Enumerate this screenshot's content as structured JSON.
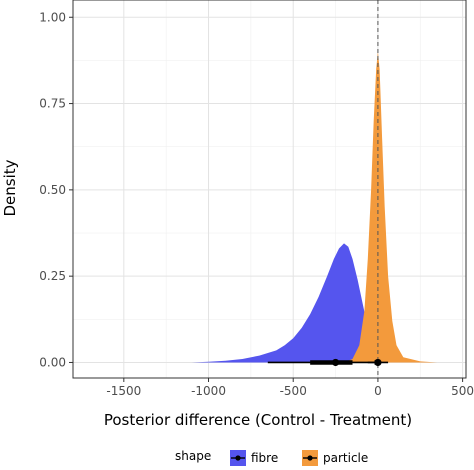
{
  "chart_data": {
    "type": "area",
    "xlabel": "Posterior difference (Control - Treatment)",
    "ylabel": "Density",
    "xlim": [
      -1800,
      520
    ],
    "ylim": [
      -0.045,
      1.05
    ],
    "x_ticks": [
      -1500,
      -1000,
      -500,
      0,
      500
    ],
    "x_tick_labels": [
      "-1500",
      "-1000",
      "-500",
      "0",
      "500"
    ],
    "y_ticks": [
      0,
      0.25,
      0.5,
      0.75,
      1.0
    ],
    "y_tick_labels": [
      "0.00",
      "0.25",
      "0.50",
      "0.75",
      "1.00"
    ],
    "grid": true,
    "reference_line_x": 0,
    "legend": {
      "title": "shape",
      "position": "bottom",
      "entries": [
        "fibre",
        "particle"
      ]
    },
    "series": [
      {
        "name": "fibre",
        "color": "#5555ee",
        "points": [
          [
            -1100,
            0.0
          ],
          [
            -1000,
            0.002
          ],
          [
            -900,
            0.005
          ],
          [
            -800,
            0.01
          ],
          [
            -700,
            0.02
          ],
          [
            -600,
            0.035
          ],
          [
            -550,
            0.05
          ],
          [
            -500,
            0.07
          ],
          [
            -450,
            0.1
          ],
          [
            -400,
            0.14
          ],
          [
            -350,
            0.19
          ],
          [
            -300,
            0.25
          ],
          [
            -260,
            0.3
          ],
          [
            -230,
            0.33
          ],
          [
            -200,
            0.345
          ],
          [
            -175,
            0.335
          ],
          [
            -150,
            0.3
          ],
          [
            -120,
            0.24
          ],
          [
            -90,
            0.17
          ],
          [
            -60,
            0.1
          ],
          [
            -30,
            0.05
          ],
          [
            0,
            0.02
          ],
          [
            40,
            0.005
          ],
          [
            80,
            0.0
          ]
        ],
        "interval": {
          "point": -250,
          "thick": [
            -400,
            -150
          ],
          "thin": [
            -650,
            0
          ]
        }
      },
      {
        "name": "particle",
        "color": "#f39a3c",
        "points": [
          [
            -200,
            0.0
          ],
          [
            -150,
            0.01
          ],
          [
            -110,
            0.05
          ],
          [
            -80,
            0.15
          ],
          [
            -60,
            0.3
          ],
          [
            -40,
            0.5
          ],
          [
            -25,
            0.7
          ],
          [
            -10,
            0.85
          ],
          [
            0,
            0.9
          ],
          [
            10,
            0.85
          ],
          [
            25,
            0.65
          ],
          [
            40,
            0.45
          ],
          [
            60,
            0.25
          ],
          [
            85,
            0.12
          ],
          [
            110,
            0.05
          ],
          [
            150,
            0.015
          ],
          [
            250,
            0.003
          ],
          [
            350,
            0.0
          ]
        ],
        "interval": {
          "point": 0,
          "thick": [
            -20,
            15
          ],
          "thin": [
            -60,
            60
          ]
        }
      }
    ]
  }
}
